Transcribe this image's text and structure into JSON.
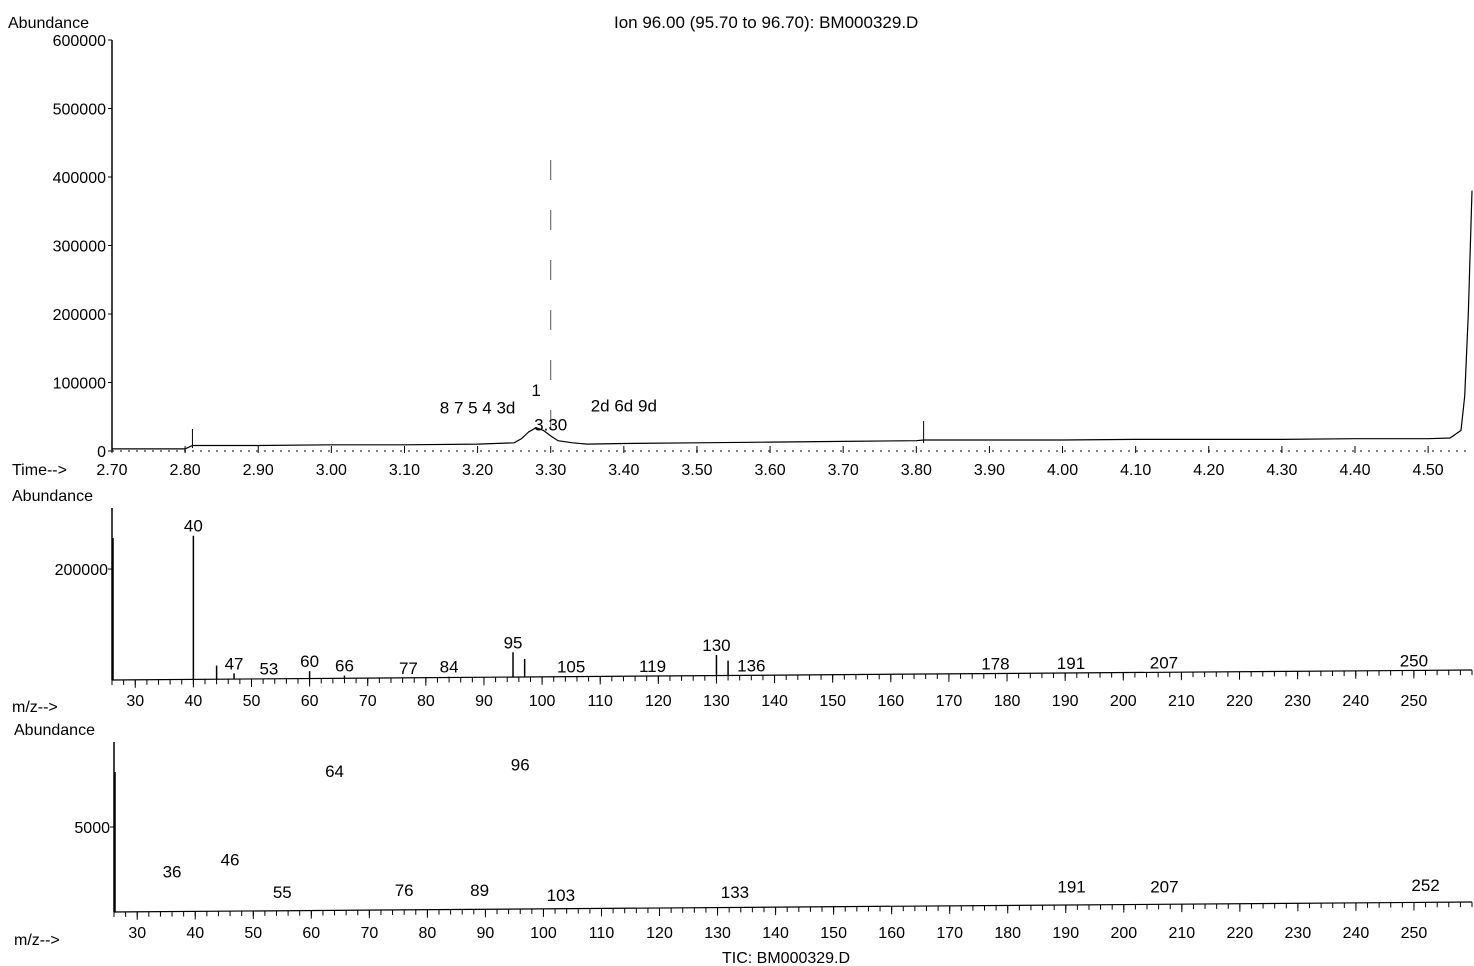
{
  "chart_data": [
    {
      "type": "line",
      "panel": "chromatogram",
      "title": "Ion  96.00 (95.70 to 96.70): BM000329.D",
      "ylabel": "Abundance",
      "xlabel": "Time-->",
      "xlim": [
        2.7,
        4.56
      ],
      "ylim": [
        0,
        600000
      ],
      "x_ticks": [
        "2.70",
        "2.80",
        "2.90",
        "3.00",
        "3.10",
        "3.20",
        "3.30",
        "3.40",
        "3.50",
        "3.60",
        "3.70",
        "3.80",
        "3.90",
        "4.00",
        "4.10",
        "4.20",
        "4.30",
        "4.40",
        "4.50"
      ],
      "y_ticks": [
        "0",
        "100000",
        "200000",
        "300000",
        "400000",
        "500000",
        "600000"
      ],
      "series": [
        {
          "x": [
            2.7,
            2.8,
            2.81,
            2.9,
            3.0,
            3.1,
            3.2,
            3.25,
            3.26,
            3.27,
            3.28,
            3.29,
            3.3,
            3.31,
            3.33,
            3.35,
            3.4,
            3.5,
            3.6,
            3.7,
            3.8,
            3.81,
            3.9,
            4.0,
            4.1,
            4.2,
            4.3,
            4.4,
            4.5,
            4.53,
            4.545,
            4.55,
            4.555,
            4.56
          ],
          "y": [
            3000,
            3000,
            8000,
            8000,
            9000,
            9000,
            10000,
            12000,
            18000,
            28000,
            34000,
            30000,
            22000,
            15000,
            12000,
            10000,
            11000,
            12000,
            13000,
            14000,
            15000,
            16000,
            16000,
            16000,
            17000,
            17000,
            17000,
            18000,
            18000,
            19000,
            30000,
            80000,
            200000,
            380000
          ]
        }
      ],
      "annotations": [
        {
          "x": 3.28,
          "y": 80000,
          "text": "1"
        },
        {
          "x": 3.3,
          "y": 30000,
          "text": "3.30"
        },
        {
          "x": 3.2,
          "y": 55000,
          "text": "8 7 5 4 3d"
        },
        {
          "x": 3.4,
          "y": 58000,
          "text": "2d 6d 9d"
        }
      ]
    },
    {
      "type": "bar",
      "panel": "spectrum-1",
      "ylabel": "Abundance",
      "xlabel": "m/z-->",
      "xlim": [
        26,
        260
      ],
      "ylim": [
        0,
        310000
      ],
      "x_ticks": [
        "30",
        "40",
        "50",
        "60",
        "70",
        "80",
        "90",
        "100",
        "110",
        "120",
        "130",
        "140",
        "150",
        "160",
        "170",
        "180",
        "190",
        "200",
        "210",
        "220",
        "230",
        "240",
        "250"
      ],
      "y_ticks": [
        "200000"
      ],
      "x": [
        40,
        44,
        47,
        53,
        60,
        66,
        77,
        84,
        95,
        97,
        105,
        119,
        130,
        132,
        136,
        178,
        191,
        207,
        250
      ],
      "y": [
        260000,
        26000,
        12000,
        3000,
        16000,
        8000,
        4000,
        6000,
        50000,
        38000,
        3000,
        5000,
        45000,
        35000,
        8000,
        5000,
        5000,
        5000,
        8000
      ],
      "labels": [
        "40",
        "",
        "47",
        "53",
        "60",
        "66",
        "77",
        "84",
        "95",
        "",
        "105",
        "119",
        "130",
        "",
        "136",
        "178",
        "191",
        "207",
        "250"
      ]
    },
    {
      "type": "bar",
      "panel": "spectrum-2",
      "ylabel": "Abundance",
      "xlabel": "m/z-->",
      "xlim": [
        26,
        260
      ],
      "ylim": [
        0,
        10000
      ],
      "x_ticks": [
        "30",
        "40",
        "50",
        "60",
        "70",
        "80",
        "90",
        "100",
        "110",
        "120",
        "130",
        "140",
        "150",
        "160",
        "170",
        "180",
        "190",
        "200",
        "210",
        "220",
        "230",
        "240",
        "250"
      ],
      "y_ticks": [
        "5000"
      ],
      "x": [
        36,
        46,
        55,
        64,
        76,
        89,
        96,
        103,
        133,
        191,
        207,
        252
      ],
      "y": [
        1800,
        2500,
        600,
        7700,
        700,
        700,
        8100,
        400,
        600,
        900,
        900,
        1000
      ],
      "labels": [
        "36",
        "46",
        "55",
        "64",
        "76",
        "89",
        "96",
        "103",
        "133",
        "191",
        "207",
        "252"
      ],
      "footer": "TIC: BM000329.D"
    }
  ]
}
